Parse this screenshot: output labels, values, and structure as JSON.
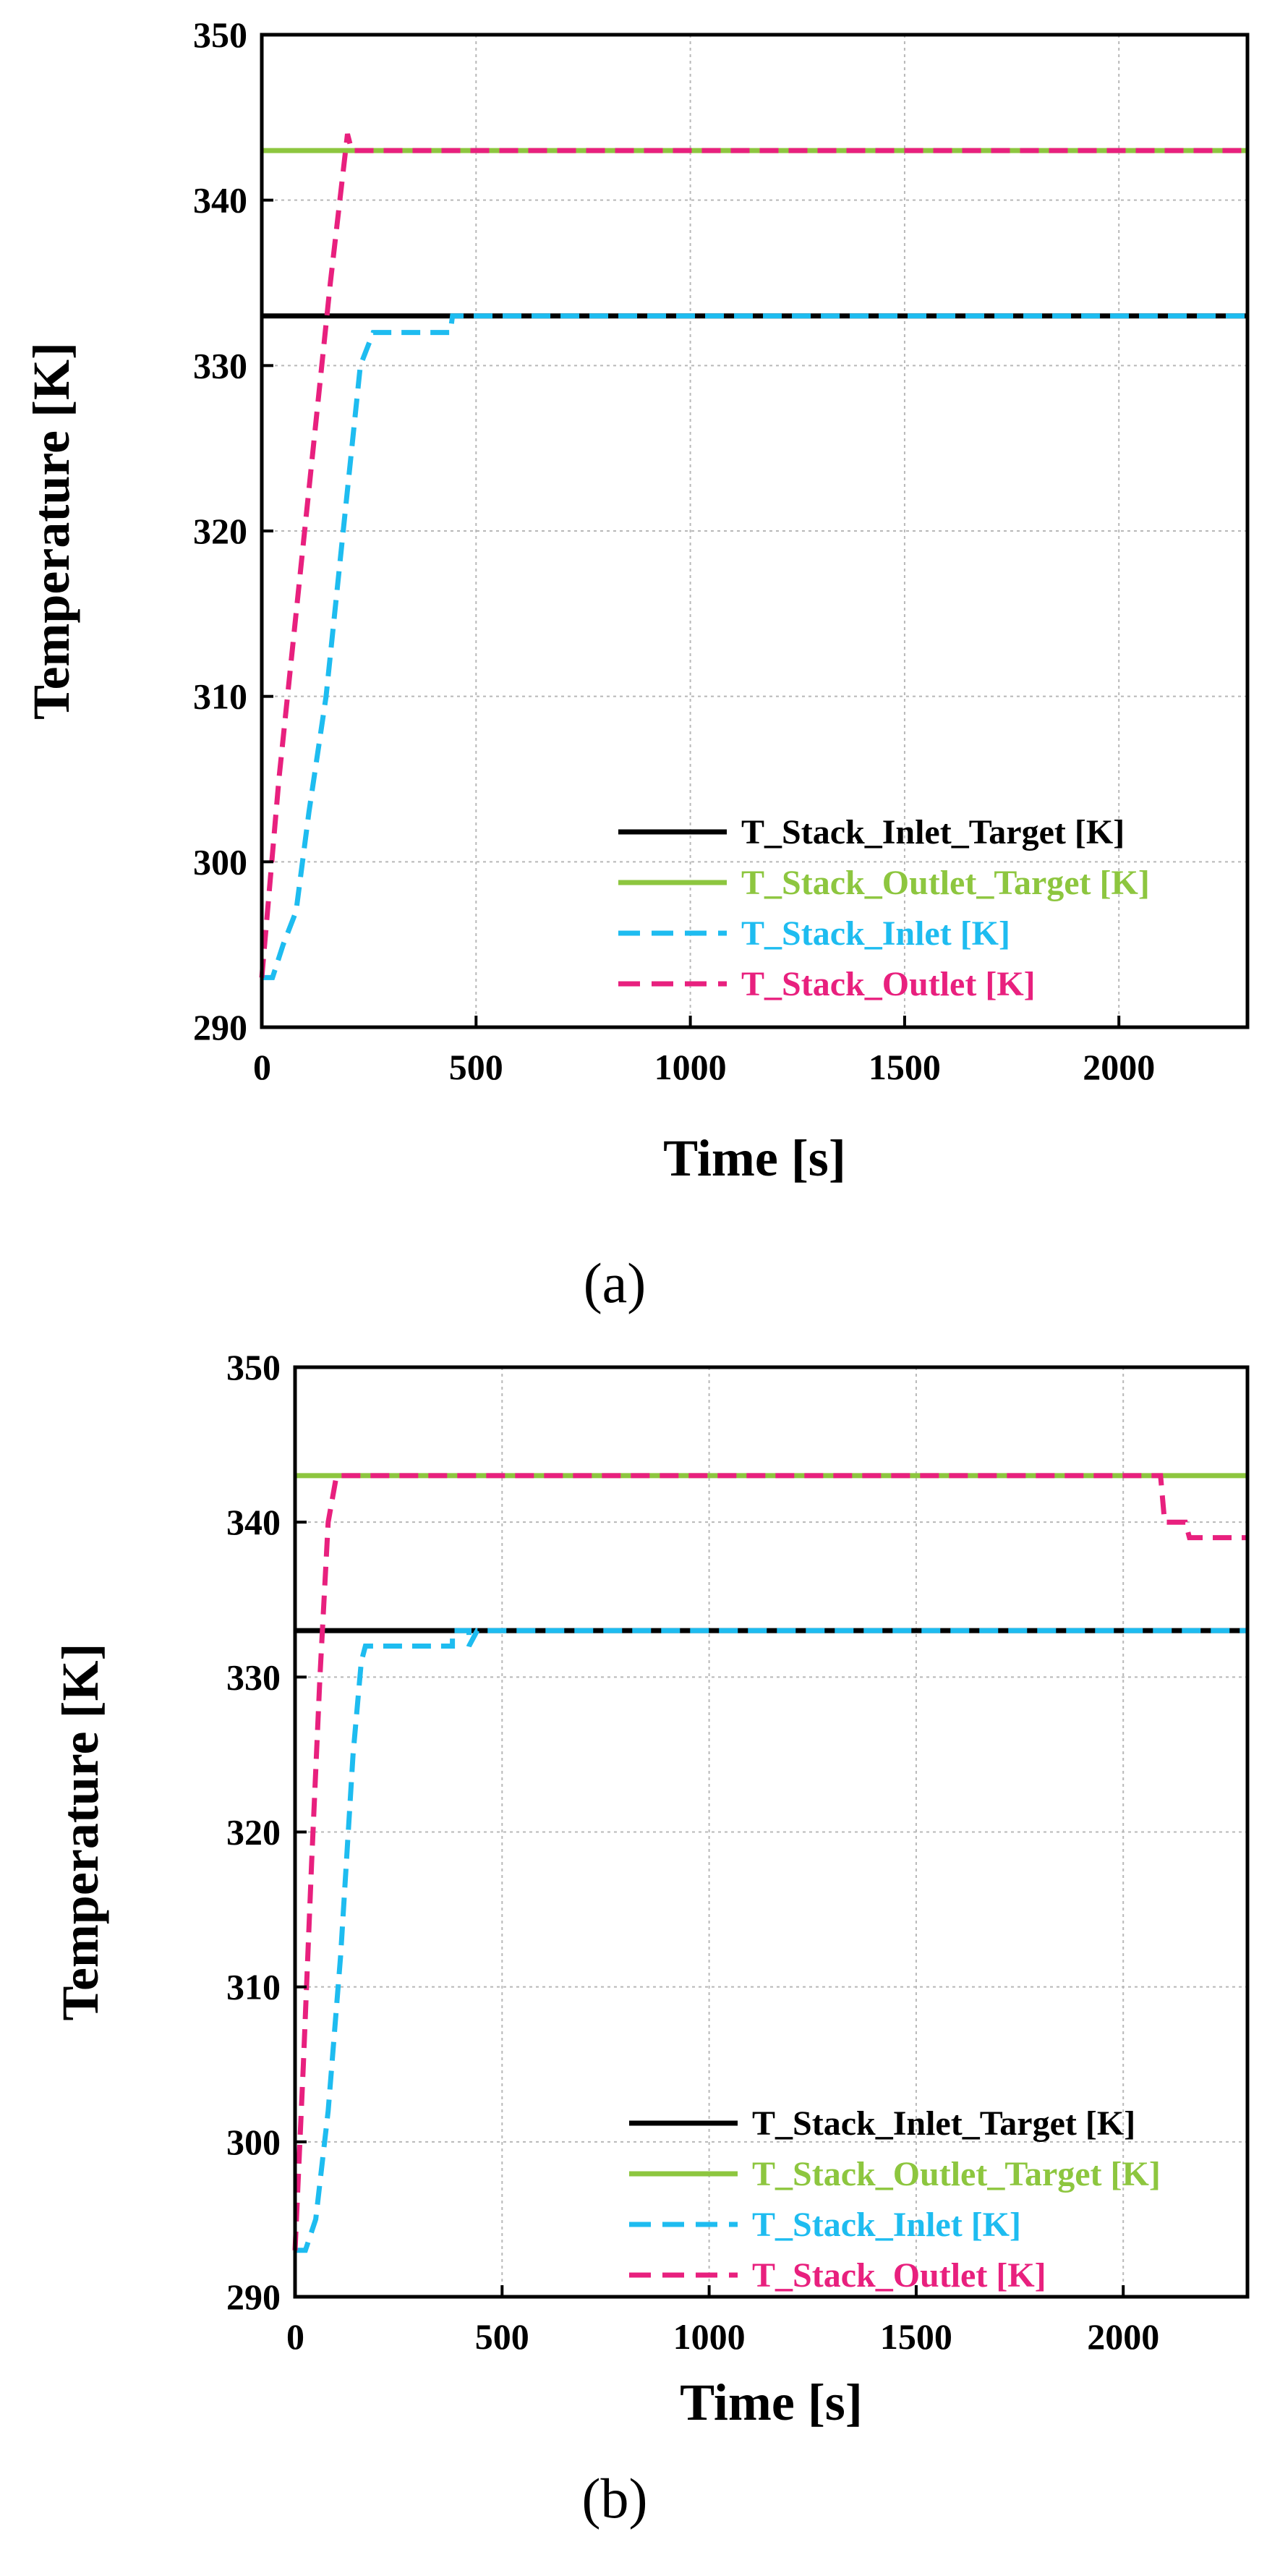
{
  "chart_data": [
    {
      "type": "line",
      "caption": "(a)",
      "xlabel": "Time [s]",
      "ylabel": "Temperature [K]",
      "xlim": [
        0,
        2300
      ],
      "ylim": [
        290,
        350
      ],
      "xticks": [
        0,
        500,
        1000,
        1500,
        2000
      ],
      "yticks": [
        290,
        300,
        310,
        320,
        330,
        340,
        350
      ],
      "grid": true,
      "legend_position": "bottom-right",
      "series": [
        {
          "name": "T_Stack_Inlet_Target [K]",
          "color": "#000000",
          "dash": "solid",
          "x": [
            0,
            2300
          ],
          "y": [
            333,
            333
          ]
        },
        {
          "name": "T_Stack_Outlet_Target [K]",
          "color": "#8dc63f",
          "dash": "solid",
          "x": [
            0,
            2300
          ],
          "y": [
            343,
            343
          ]
        },
        {
          "name": "T_Stack_Inlet [K]",
          "color": "#1ebcf0",
          "dash": "dashed",
          "x": [
            0,
            25,
            50,
            80,
            110,
            150,
            190,
            230,
            260,
            300,
            350,
            440,
            445,
            2300
          ],
          "y": [
            293,
            293,
            295,
            297,
            303,
            310,
            320,
            330,
            332,
            332,
            332,
            332,
            333,
            333
          ]
        },
        {
          "name": "T_Stack_Outlet [K]",
          "color": "#e8207e",
          "dash": "dashed",
          "x": [
            0,
            40,
            80,
            120,
            160,
            200,
            210,
            230,
            2300
          ],
          "y": [
            293,
            305,
            315,
            325,
            335,
            344,
            343,
            343,
            343
          ]
        }
      ]
    },
    {
      "type": "line",
      "caption": "(b)",
      "xlabel": "Time [s]",
      "ylabel": "Temperature [K]",
      "xlim": [
        0,
        2300
      ],
      "ylim": [
        290,
        350
      ],
      "xticks": [
        0,
        500,
        1000,
        1500,
        2000
      ],
      "yticks": [
        290,
        300,
        310,
        320,
        330,
        340,
        350
      ],
      "grid": true,
      "legend_position": "bottom-right",
      "series": [
        {
          "name": "T_Stack_Inlet_Target [K]",
          "color": "#000000",
          "dash": "solid",
          "x": [
            0,
            2300
          ],
          "y": [
            333,
            333
          ]
        },
        {
          "name": "T_Stack_Outlet_Target [K]",
          "color": "#8dc63f",
          "dash": "solid",
          "x": [
            0,
            2300
          ],
          "y": [
            343,
            343
          ]
        },
        {
          "name": "T_Stack_Inlet [K]",
          "color": "#1ebcf0",
          "dash": "dashed",
          "x": [
            0,
            25,
            50,
            80,
            110,
            140,
            160,
            170,
            200,
            250,
            300,
            350,
            380,
            380,
            420,
            420,
            440,
            2300
          ],
          "y": [
            293,
            293,
            295,
            302,
            312,
            325,
            331,
            332,
            332,
            332,
            332,
            332,
            332,
            333,
            333,
            332,
            333,
            333
          ]
        },
        {
          "name": "T_Stack_Outlet [K]",
          "color": "#e8207e",
          "dash": "dashed",
          "x": [
            0,
            20,
            40,
            60,
            80,
            100,
            120,
            2090,
            2100,
            2150,
            2160,
            2200,
            2210,
            2300
          ],
          "y": [
            293,
            305,
            318,
            330,
            340,
            343,
            343,
            343,
            340,
            340,
            339,
            339,
            339,
            339
          ]
        }
      ]
    }
  ]
}
